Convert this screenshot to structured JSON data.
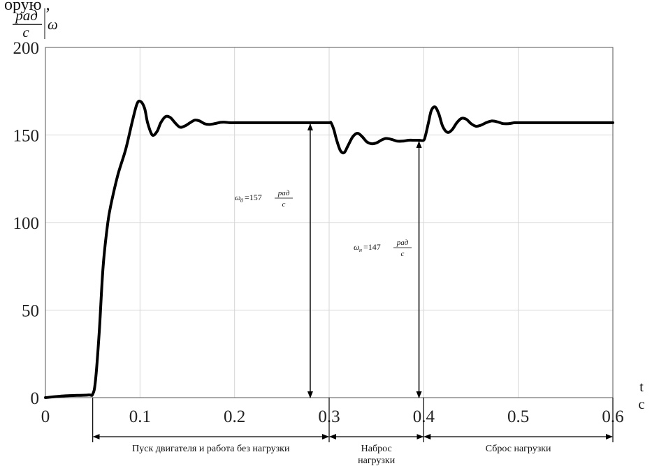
{
  "chart_data": {
    "type": "line",
    "title": "",
    "top_cut_text": "орую ,",
    "xlabel": "t",
    "xunit": "c",
    "ylabel": "ω",
    "yunit_num": "рад",
    "yunit_den": "c",
    "xlim": [
      0,
      0.6
    ],
    "ylim": [
      0,
      200
    ],
    "xticks": [
      "0",
      "0.1",
      "0.2",
      "0.3",
      "0.4",
      "0.5",
      "0.6"
    ],
    "yticks": [
      "0",
      "50",
      "100",
      "150",
      "200"
    ],
    "grid": true,
    "series": [
      {
        "x": [
          0,
          0.02,
          0.045,
          0.05,
          0.053,
          0.057,
          0.061,
          0.066,
          0.07,
          0.077,
          0.085,
          0.092,
          0.097,
          0.101,
          0.105,
          0.108,
          0.113,
          0.118,
          0.122,
          0.127,
          0.132,
          0.137,
          0.142,
          0.147,
          0.153,
          0.158,
          0.163,
          0.168,
          0.173,
          0.179,
          0.185,
          0.19,
          0.195,
          0.2,
          0.21,
          0.22,
          0.23,
          0.24,
          0.25,
          0.26,
          0.27,
          0.28,
          0.29,
          0.3,
          0.302,
          0.305,
          0.308,
          0.312,
          0.316,
          0.32,
          0.325,
          0.33,
          0.335,
          0.34,
          0.345,
          0.35,
          0.355,
          0.36,
          0.366,
          0.372,
          0.378,
          0.384,
          0.39,
          0.395,
          0.4,
          0.402,
          0.405,
          0.408,
          0.412,
          0.416,
          0.42,
          0.425,
          0.43,
          0.435,
          0.44,
          0.445,
          0.45,
          0.455,
          0.46,
          0.466,
          0.472,
          0.478,
          0.484,
          0.49,
          0.496,
          0.5,
          0.51,
          0.52,
          0.53,
          0.54,
          0.55,
          0.56,
          0.57,
          0.58,
          0.59,
          0.6
        ],
        "y": [
          0,
          1,
          1.5,
          2,
          10,
          38,
          75,
          100,
          112,
          128,
          142,
          158,
          168,
          169,
          165,
          157,
          150,
          152,
          157,
          160.5,
          160,
          157,
          154.5,
          155,
          157,
          158.5,
          158,
          156.5,
          156,
          156.5,
          157.2,
          157.3,
          157,
          157,
          157,
          157,
          157,
          157,
          157,
          157,
          157,
          157,
          157,
          157,
          157,
          153,
          147,
          141,
          140,
          144,
          149,
          151,
          149,
          146,
          145,
          145.5,
          147,
          148,
          147.5,
          146.5,
          146.5,
          147,
          147,
          147,
          147,
          150,
          157,
          164,
          166,
          162,
          155,
          151.5,
          153,
          157,
          159.5,
          159,
          156.5,
          155,
          155.5,
          157,
          158,
          157.5,
          156.5,
          156.5,
          157,
          157,
          157,
          157,
          157,
          157,
          157,
          157,
          157,
          157,
          157,
          157
        ]
      }
    ],
    "annotations": [
      {
        "symbol": "ω",
        "subscript": "0",
        "text": "=157",
        "unit_num": "рад",
        "unit_den": "c",
        "x": 0.28,
        "from_y": 0,
        "to_y": 157
      },
      {
        "symbol": "ω",
        "subscript": "н",
        "text": "=147",
        "unit_num": "рад",
        "unit_den": "c",
        "x": 0.395,
        "from_y": 0,
        "to_y": 147
      }
    ],
    "phases": [
      {
        "label": "Пуск двигателя и работа без нагрузки",
        "from": 0.05,
        "to": 0.3
      },
      {
        "label_line1": "Наброс",
        "label_line2": "нагрузки",
        "from": 0.3,
        "to": 0.4
      },
      {
        "label": "Сброс нагрузки",
        "from": 0.4,
        "to": 0.6
      }
    ]
  }
}
